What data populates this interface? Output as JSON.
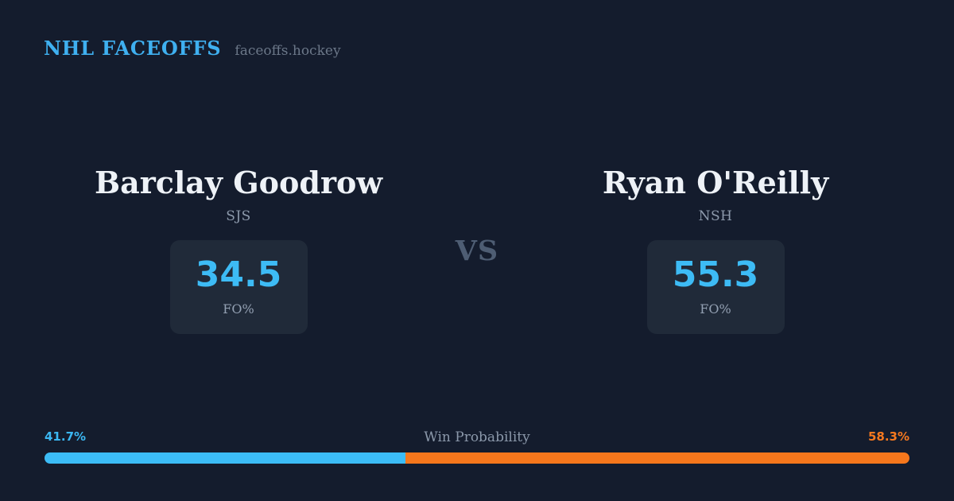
{
  "header": {
    "brand": "NHL FACEOFFS",
    "site": "faceoffs.hockey"
  },
  "players": [
    {
      "name": "Barclay Goodrow",
      "team": "SJS",
      "stat_value": "34.5",
      "stat_label": "FO%"
    },
    {
      "name": "Ryan O'Reilly",
      "team": "NSH",
      "stat_value": "55.3",
      "stat_label": "FO%"
    }
  ],
  "vs_label": "VS",
  "win_probability": {
    "label": "Win Probability",
    "left_pct": "41.7%",
    "right_pct": "58.3%",
    "left_value": 41.7,
    "right_value": 58.3
  },
  "colors": {
    "background": "#141c2d",
    "stat_card_background": "#202a39",
    "accent_blue": "#3cbcf6",
    "accent_orange": "#f6771c",
    "name_text": "#eef2f7",
    "muted_text": "#8d9aac",
    "vs_text": "#4e5d73"
  },
  "chart_data": {
    "type": "bar",
    "title": "Win Probability",
    "categories": [
      "Barclay Goodrow (SJS)",
      "Ryan O'Reilly (NSH)"
    ],
    "series": [
      {
        "name": "Win Probability %",
        "values": [
          41.7,
          58.3
        ]
      },
      {
        "name": "Faceoff Win % (FO%)",
        "values": [
          34.5,
          55.3
        ]
      }
    ],
    "layout": "horizontal stacked proportion bar, labels at ends, title centered above",
    "colors": [
      "#3cbcf6",
      "#f6771c"
    ],
    "xlim": [
      0,
      100
    ]
  }
}
